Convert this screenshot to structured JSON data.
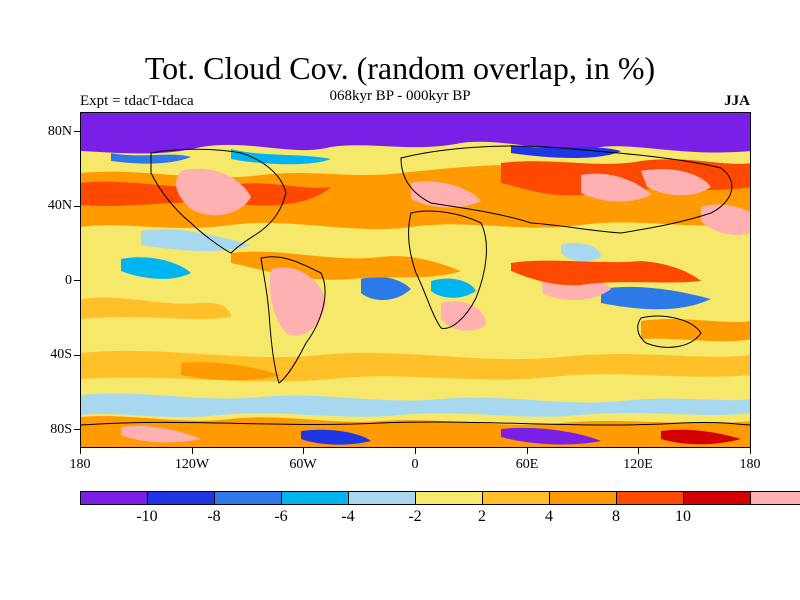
{
  "figure": {
    "title": "Tot. Cloud Cov. (random overlap, in %)",
    "subtitle": "068kyr BP - 000kyr BP",
    "experiment": "Expt = tdacT-tdaca",
    "season": "JJA"
  },
  "map": {
    "lat_labels": [
      "80N",
      "40N",
      "0",
      "40S",
      "80S"
    ],
    "lon_labels": [
      "180",
      "120W",
      "60W",
      "0",
      "60E",
      "120E",
      "180"
    ]
  },
  "legend": {
    "colors": [
      "#7a1fe6",
      "#1e36e6",
      "#2c7ae8",
      "#00b4f0",
      "#a8d8f0",
      "#f6e86a",
      "#ffc02a",
      "#ff9a00",
      "#ff4800",
      "#d40000",
      "#ffb0b0"
    ],
    "labels": [
      "-10",
      "-8",
      "-6",
      "-4",
      "-2",
      "2",
      "4",
      "8",
      "10"
    ]
  }
}
